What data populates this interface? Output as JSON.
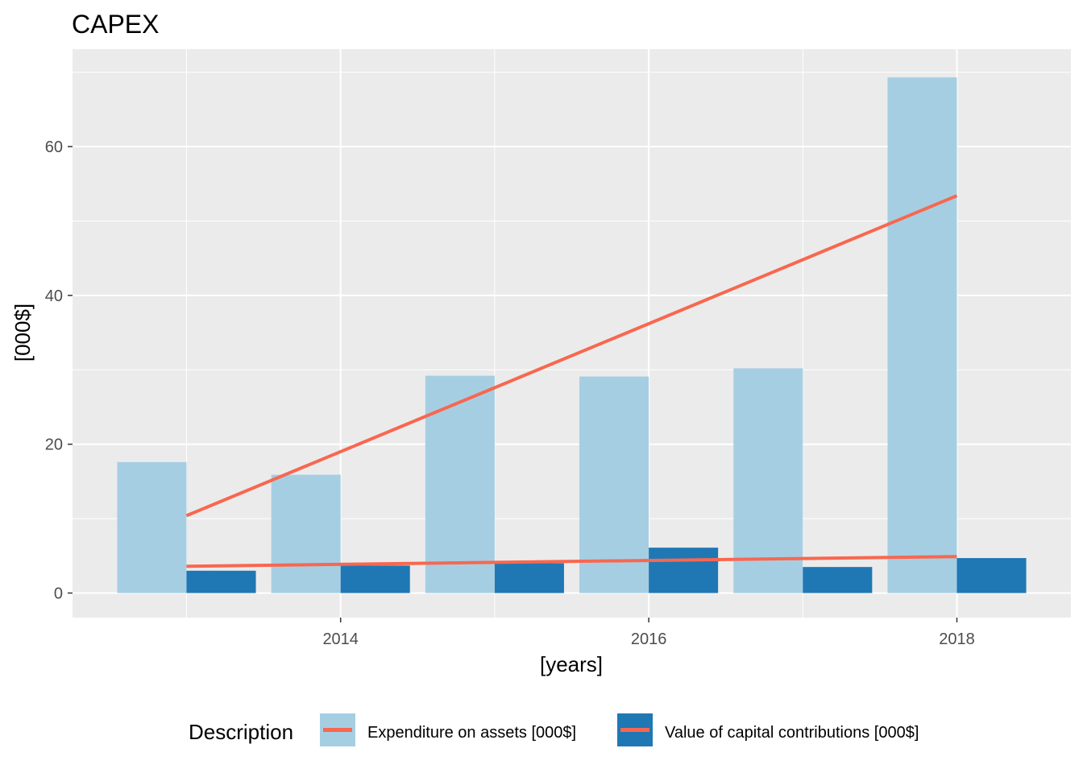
{
  "chart_data": {
    "type": "bar",
    "title": "CAPEX",
    "xlabel": "[years]",
    "ylabel": "[000$]",
    "x": [
      2013,
      2014,
      2015,
      2016,
      2017,
      2018
    ],
    "xlim": [
      2012.26,
      2018.74
    ],
    "ylim": [
      -3.3,
      73.1
    ],
    "x_ticks": [
      2014,
      2016,
      2018
    ],
    "x_tick_labels": [
      "2014",
      "2016",
      "2018"
    ],
    "y_ticks": [
      0,
      20,
      40,
      60
    ],
    "y_tick_labels": [
      "0",
      "20",
      "40",
      "60"
    ],
    "grid": true,
    "legend_position": "bottom",
    "legend_title": "Description",
    "series": [
      {
        "name": "Expenditure on assets [000$]",
        "color": "#a6cee3",
        "values": [
          17.6,
          15.9,
          29.2,
          29.1,
          30.2,
          69.3
        ],
        "trend": [
          10.4,
          53.4
        ]
      },
      {
        "name": "Value of capital contributions [000$]",
        "color": "#1f78b4",
        "values": [
          3.0,
          3.7,
          4.0,
          6.1,
          3.5,
          4.7
        ],
        "trend": [
          3.6,
          4.9
        ]
      }
    ],
    "trend_color": "#f8674f"
  }
}
